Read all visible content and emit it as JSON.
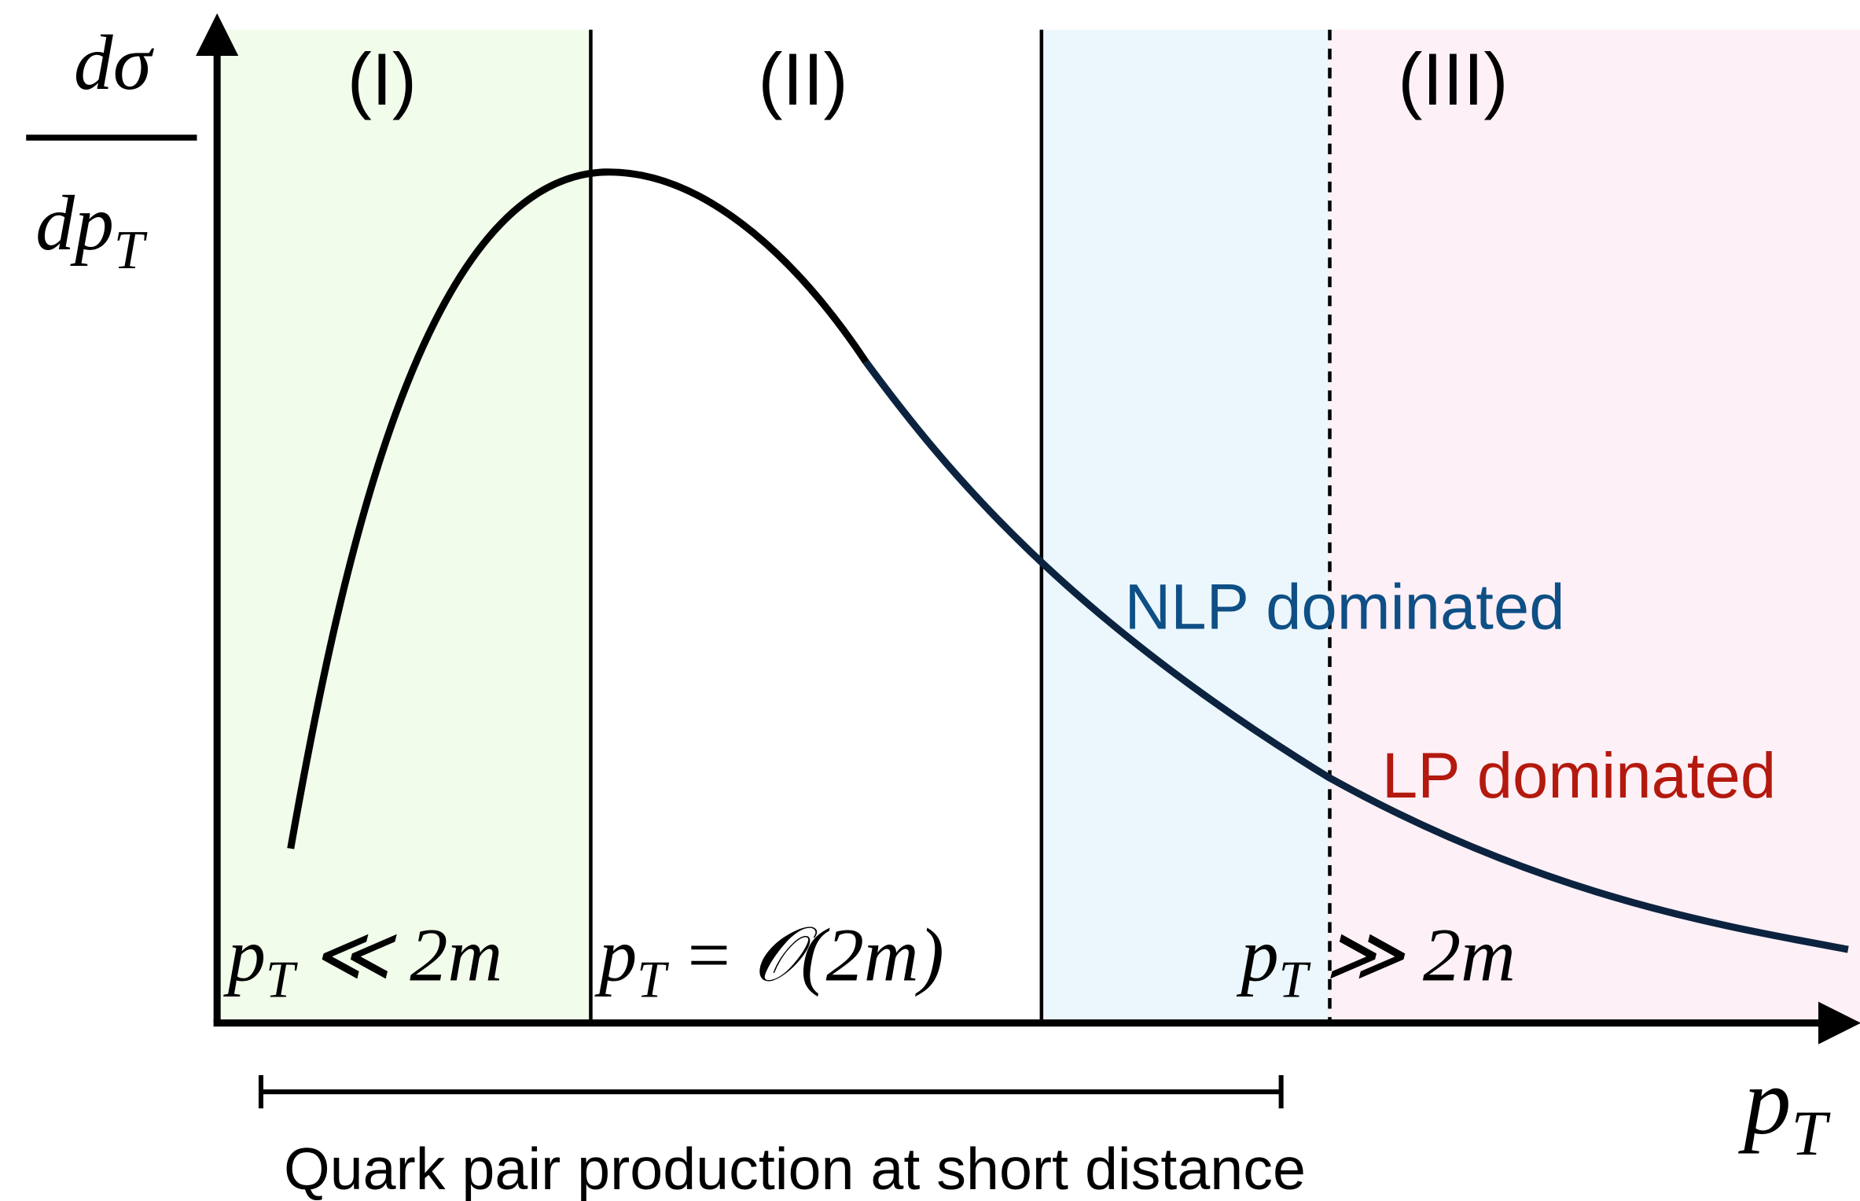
{
  "y_axis_label": {
    "numerator": "dσ",
    "denominator": "dp",
    "denominator_sub": "T"
  },
  "x_axis_label": {
    "base": "p",
    "sub": "T"
  },
  "regions": [
    {
      "label": "(I)",
      "condition": {
        "base": "p",
        "sub": "T",
        "rest": "≪ 2m"
      }
    },
    {
      "label": "(II)",
      "condition": {
        "base": "p",
        "sub": "T",
        "rest": "= 𝒪(2m)"
      }
    },
    {
      "label": "(III)",
      "condition": {
        "base": "p",
        "sub": "T",
        "rest": "≫ 2m"
      }
    }
  ],
  "annotations": {
    "nlp": "NLP dominated",
    "lp": "LP dominated"
  },
  "range_bar_label": "Quark pair production at short distance"
}
